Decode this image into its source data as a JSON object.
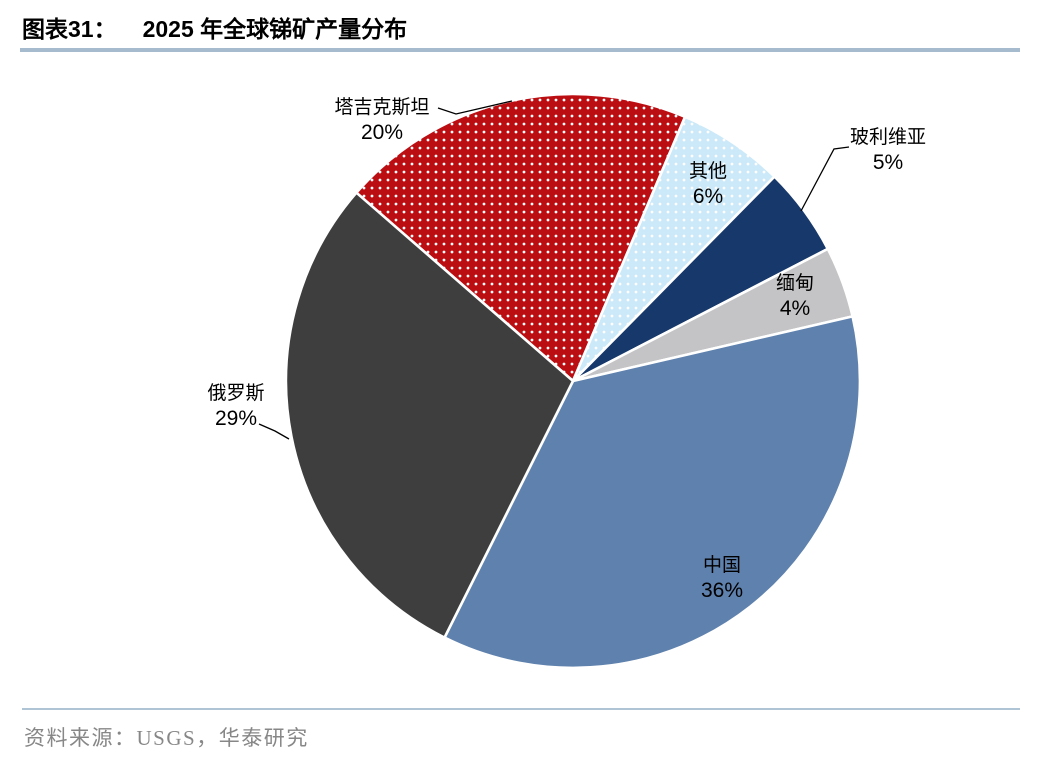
{
  "header": {
    "figure_label": "图表31：",
    "title": "2025 年全球锑矿产量分布"
  },
  "chart_data": {
    "type": "pie",
    "title": "2025 年全球锑矿产量分布",
    "value_format": "percent",
    "start_angle_deg": -49,
    "direction": "clockwise",
    "legend": "none",
    "labels_position": "outside-with-leader-lines",
    "slices": [
      {
        "id": "tajikistan",
        "label": "塔吉克斯坦",
        "pct": "20%",
        "value": 20,
        "color": "#bb0e13",
        "pattern": "white-dots"
      },
      {
        "id": "others",
        "label": "其他",
        "pct": "6%",
        "value": 6,
        "color": "#cbe9f8",
        "pattern": "white-dots"
      },
      {
        "id": "bolivia",
        "label": "玻利维亚",
        "pct": "5%",
        "value": 5,
        "color": "#17386b",
        "pattern": "solid"
      },
      {
        "id": "myanmar",
        "label": "缅甸",
        "pct": "4%",
        "value": 4,
        "color": "#c4c4c6",
        "pattern": "solid"
      },
      {
        "id": "china",
        "label": "中国",
        "pct": "36%",
        "value": 36,
        "color": "#5e81ad",
        "pattern": "solid"
      },
      {
        "id": "russia",
        "label": "俄罗斯",
        "pct": "29%",
        "value": 29,
        "color": "#3e3e3e",
        "pattern": "solid"
      }
    ]
  },
  "footer": {
    "source": "资料来源：USGS，华泰研究"
  }
}
